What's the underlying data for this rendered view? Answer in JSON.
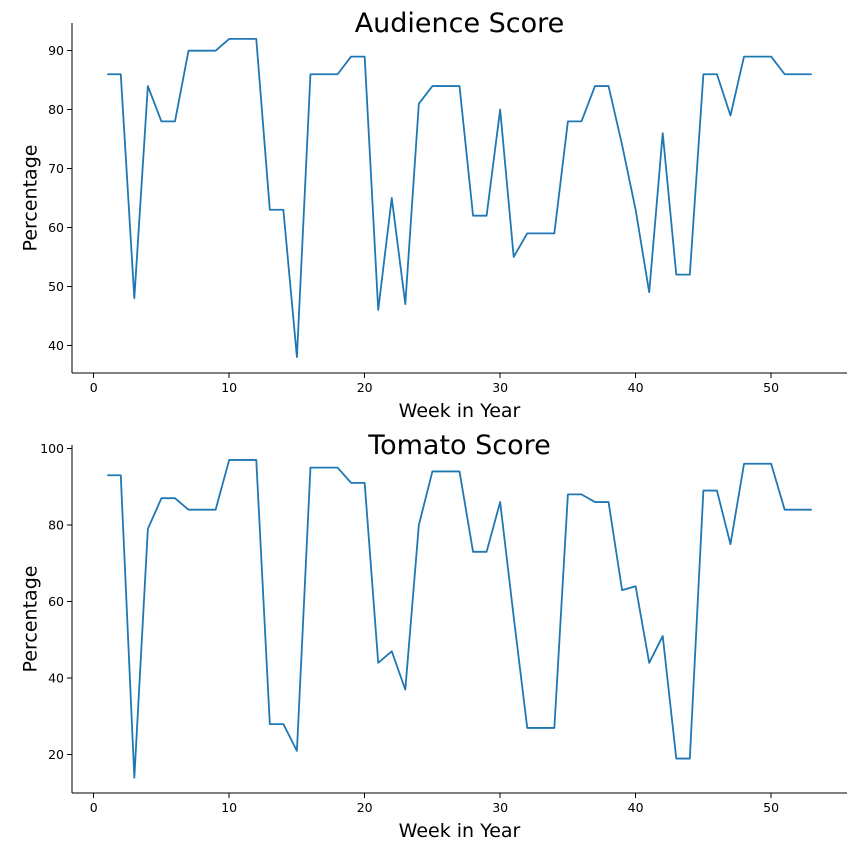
{
  "chart_data": [
    {
      "type": "line",
      "title": "Audience Score",
      "xlabel": "Week in Year",
      "ylabel": "Percentage",
      "xlim": [
        -1.6,
        55.6
      ],
      "ylim": [
        35.3,
        94.7
      ],
      "xticks": [
        0,
        10,
        20,
        30,
        40,
        50
      ],
      "yticks": [
        40,
        50,
        60,
        70,
        80,
        90
      ],
      "grid": false,
      "color": "#1f77b4",
      "x": [
        1,
        2,
        3,
        4,
        5,
        6,
        7,
        8,
        9,
        10,
        11,
        12,
        13,
        14,
        15,
        16,
        17,
        18,
        19,
        20,
        21,
        22,
        23,
        24,
        25,
        26,
        27,
        28,
        29,
        30,
        31,
        32,
        33,
        34,
        35,
        36,
        37,
        38,
        39,
        40,
        41,
        42,
        43,
        44,
        45,
        46,
        47,
        48,
        49,
        50,
        51,
        52,
        53
      ],
      "values": [
        86,
        86,
        48,
        84,
        78,
        78,
        90,
        90,
        90,
        92,
        92,
        92,
        63,
        63,
        38,
        86,
        86,
        86,
        89,
        89,
        46,
        65,
        47,
        81,
        84,
        84,
        84,
        62,
        62,
        80,
        55,
        59,
        59,
        59,
        78,
        78,
        84,
        84,
        74,
        63,
        49,
        76,
        52,
        52,
        86,
        86,
        79,
        89,
        89,
        89,
        86,
        86,
        86
      ]
    },
    {
      "type": "line",
      "title": "Tomato Score",
      "xlabel": "Week in Year",
      "ylabel": "Percentage",
      "xlim": [
        -1.6,
        55.6
      ],
      "ylim": [
        10.0,
        100.9
      ],
      "xticks": [
        0,
        10,
        20,
        30,
        40,
        50
      ],
      "yticks": [
        20,
        40,
        60,
        80,
        100
      ],
      "grid": false,
      "color": "#1f77b4",
      "x": [
        1,
        2,
        3,
        4,
        5,
        6,
        7,
        8,
        9,
        10,
        11,
        12,
        13,
        14,
        15,
        16,
        17,
        18,
        19,
        20,
        21,
        22,
        23,
        24,
        25,
        26,
        27,
        28,
        29,
        30,
        31,
        32,
        33,
        34,
        35,
        36,
        37,
        38,
        39,
        40,
        41,
        42,
        43,
        44,
        45,
        46,
        47,
        48,
        49,
        50,
        51,
        52,
        53
      ],
      "values": [
        93,
        93,
        14,
        79,
        87,
        87,
        84,
        84,
        84,
        97,
        97,
        97,
        28,
        28,
        21,
        95,
        95,
        95,
        91,
        91,
        44,
        47,
        37,
        80,
        94,
        94,
        94,
        73,
        73,
        86,
        56,
        27,
        27,
        27,
        88,
        88,
        86,
        86,
        63,
        64,
        44,
        51,
        19,
        19,
        89,
        89,
        75,
        96,
        96,
        96,
        84,
        84,
        84
      ]
    }
  ]
}
